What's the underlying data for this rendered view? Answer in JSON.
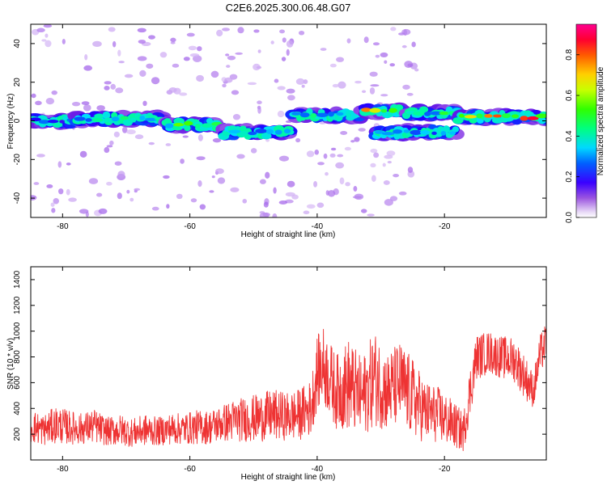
{
  "figure": {
    "title": "C2E6.2025.300.06.48.G07"
  },
  "chart_data": [
    {
      "type": "heatmap",
      "title": "C2E6.2025.300.06.48.G07",
      "xlabel": "Height of straight line (km)",
      "ylabel": "Frequency (Hz)",
      "xlim": [
        -85,
        -4
      ],
      "ylim": [
        -50,
        50
      ],
      "xticks": [
        -80,
        -60,
        -40,
        -20
      ],
      "yticks": [
        40,
        20,
        0,
        -20,
        -40
      ],
      "colorbar": {
        "label": "Normalized spectral amplitude",
        "range": [
          0,
          0.95
        ],
        "ticks": [
          "0.0",
          "0.2",
          "0.4",
          "0.6",
          "0.8"
        ],
        "tick_values": [
          0.0,
          0.2,
          0.4,
          0.6,
          0.8
        ],
        "colormap": "rainbow (violet-blue-cyan-green-yellow-red-magenta)"
      },
      "ridge_segments": [
        {
          "x_start": -85,
          "x_end": -78,
          "freq": 0,
          "peak": 0.35
        },
        {
          "x_start": -78,
          "x_end": -64,
          "freq": 1,
          "peak": 0.5
        },
        {
          "x_start": -64,
          "x_end": -55,
          "freq": -2,
          "peak": 0.6
        },
        {
          "x_start": -55,
          "x_end": -44,
          "freq": -6,
          "peak": 0.45
        },
        {
          "x_start": -44,
          "x_end": -33,
          "freq": 3,
          "peak": 0.5
        },
        {
          "x_start": -33,
          "x_end": -26,
          "freq": 5,
          "peak": 0.8
        },
        {
          "x_start": -31,
          "x_end": -18,
          "freq": -6,
          "peak": 0.45
        },
        {
          "x_start": -26,
          "x_end": -18,
          "freq": 4,
          "peak": 0.55
        },
        {
          "x_start": -18,
          "x_end": -4,
          "freq": 2,
          "peak": 0.95
        }
      ]
    },
    {
      "type": "line",
      "xlabel": "Height of straight line (km)",
      "ylabel": "SNR (10 * v/v)",
      "xlim": [
        -85,
        -4
      ],
      "ylim": [
        0,
        1500
      ],
      "xticks": [
        -80,
        -60,
        -40,
        -20
      ],
      "yticks": [
        200,
        400,
        600,
        800,
        1000,
        1200,
        1400
      ],
      "color": "#ee3333",
      "series": [
        {
          "name": "SNR",
          "x": [
            -85,
            -83,
            -81,
            -79,
            -77,
            -75,
            -73,
            -71,
            -69,
            -67,
            -65,
            -63,
            -61,
            -59,
            -57,
            -55,
            -53,
            -51,
            -49,
            -47,
            -45,
            -43,
            -41,
            -40,
            -39,
            -37,
            -35,
            -33,
            -31,
            -29,
            -27,
            -25,
            -23,
            -21,
            -19,
            -17,
            -16,
            -15,
            -13,
            -11,
            -9,
            -7,
            -6,
            -5,
            -4
          ],
          "values": [
            250,
            220,
            260,
            240,
            230,
            250,
            210,
            220,
            200,
            220,
            210,
            230,
            230,
            240,
            240,
            270,
            290,
            300,
            310,
            330,
            320,
            330,
            380,
            650,
            700,
            500,
            550,
            450,
            600,
            500,
            560,
            450,
            350,
            330,
            270,
            200,
            500,
            780,
            820,
            780,
            760,
            600,
            520,
            800,
            900
          ],
          "amplitude": [
            120,
            110,
            130,
            120,
            110,
            120,
            100,
            110,
            100,
            110,
            100,
            110,
            110,
            120,
            120,
            130,
            150,
            160,
            170,
            180,
            170,
            180,
            200,
            260,
            280,
            260,
            330,
            280,
            340,
            280,
            300,
            280,
            220,
            200,
            170,
            140,
            180,
            160,
            150,
            150,
            160,
            150,
            120,
            140,
            140
          ]
        }
      ]
    }
  ]
}
